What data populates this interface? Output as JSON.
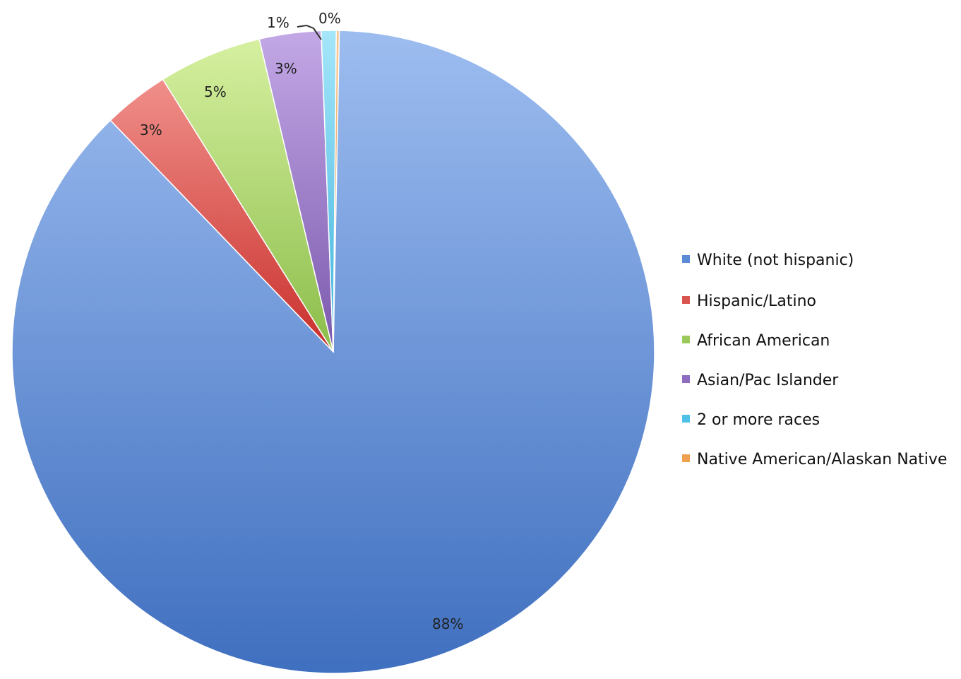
{
  "chart_data": {
    "type": "pie",
    "title": "",
    "legend_position": "right",
    "slices": [
      {
        "label": "White (not hispanic)",
        "value": 88,
        "data_label": "88%",
        "color": "#5b8bd4"
      },
      {
        "label": "Hispanic/Latino",
        "value": 3,
        "data_label": "3%",
        "color": "#d9534f"
      },
      {
        "label": "African American",
        "value": 5,
        "data_label": "5%",
        "color": "#9bc95a"
      },
      {
        "label": "Asian/Pac Islander",
        "value": 3,
        "data_label": "3%",
        "color": "#8e6cbf"
      },
      {
        "label": "2 or more races",
        "value": 1,
        "data_label": "1%",
        "color": "#4fc0e8"
      },
      {
        "label": "Native American/Alaskan Native",
        "value": 0,
        "data_label": "0%",
        "color": "#f0a050"
      }
    ]
  }
}
